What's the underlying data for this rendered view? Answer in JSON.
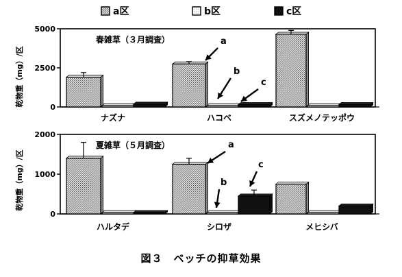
{
  "legend": [
    {
      "label": "a区",
      "pattern": "dotted"
    },
    {
      "label": "b区",
      "pattern": "light"
    },
    {
      "label": "c区",
      "pattern": "black"
    }
  ],
  "ylabel": "乾物重（mg）/区",
  "caption": "図３　ベッチの抑草効果",
  "chart_data": [
    {
      "type": "bar",
      "title": "春雑草（３月調査）",
      "categories": [
        "ナズナ",
        "ハコベ",
        "スズメノテッポウ"
      ],
      "series": [
        {
          "name": "a区",
          "values": [
            1900,
            2750,
            4650
          ],
          "errors": [
            300,
            150,
            250
          ]
        },
        {
          "name": "b区",
          "values": [
            20,
            30,
            20
          ],
          "errors": [
            0,
            0,
            0
          ]
        },
        {
          "name": "c区",
          "values": [
            180,
            150,
            150
          ],
          "errors": [
            0,
            0,
            0
          ]
        }
      ],
      "yticks": [
        0,
        2500,
        5000
      ],
      "ylim": [
        0,
        5000
      ],
      "annotations": [
        "a",
        "b",
        "c"
      ]
    },
    {
      "type": "bar",
      "title": "夏雑草（５月調査）",
      "categories": [
        "ハルタデ",
        "シロザ",
        "メヒシバ"
      ],
      "series": [
        {
          "name": "a区",
          "values": [
            1400,
            1250,
            750
          ],
          "errors": [
            400,
            150,
            0
          ]
        },
        {
          "name": "b区",
          "values": [
            10,
            10,
            10
          ],
          "errors": [
            0,
            0,
            0
          ]
        },
        {
          "name": "c区",
          "values": [
            30,
            450,
            200
          ],
          "errors": [
            0,
            150,
            0
          ]
        }
      ],
      "yticks": [
        0,
        1000,
        2000
      ],
      "ylim": [
        0,
        2000
      ],
      "annotations": [
        "a",
        "b",
        "c"
      ]
    }
  ]
}
